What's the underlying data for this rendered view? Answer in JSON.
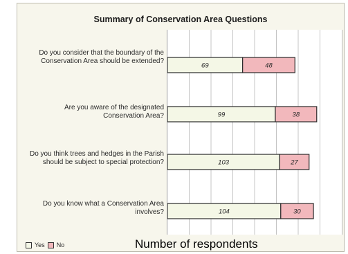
{
  "chart_data": {
    "type": "bar",
    "orientation": "horizontal",
    "stacked": true,
    "title": "Summary of Conservation Area Questions",
    "xlabel": "Number of respondents",
    "ylabel": "",
    "xlim": [
      0,
      160
    ],
    "grid": true,
    "legend_position": "bottom-left",
    "categories": [
      "Do you consider that the boundary of the Conservation Area should be extended?",
      "Are you aware of the designated Conservation Area?",
      "Do you think trees and hedges in the Parish should be subject to special protection?",
      "Do you know what a Conservation Area involves?"
    ],
    "series": [
      {
        "name": "Yes",
        "color": "#f4f7e6",
        "values": [
          69,
          99,
          103,
          104
        ]
      },
      {
        "name": "No",
        "color": "#f2b8bc",
        "values": [
          48,
          38,
          27,
          30
        ]
      }
    ]
  }
}
